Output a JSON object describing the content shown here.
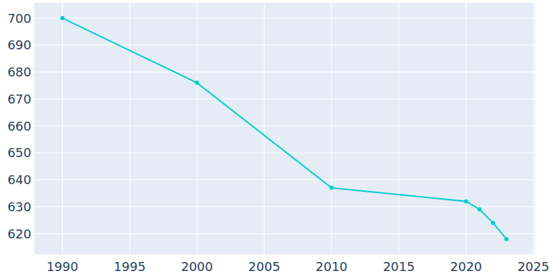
{
  "chart_data": {
    "type": "line",
    "x": [
      1990,
      2000,
      2010,
      2020,
      2021,
      2022,
      2023
    ],
    "values": [
      700,
      676,
      637,
      632,
      629,
      624,
      618
    ],
    "color": "#00cccc",
    "marker": "circle",
    "xlim": [
      1987.9,
      2025.1
    ],
    "xticks": [
      1990,
      1995,
      2000,
      2005,
      2010,
      2015,
      2020,
      2025
    ],
    "ylim": [
      612.3,
      705.7
    ],
    "yticks": [
      620,
      630,
      640,
      650,
      660,
      670,
      680,
      690,
      700
    ],
    "grid": true
  }
}
